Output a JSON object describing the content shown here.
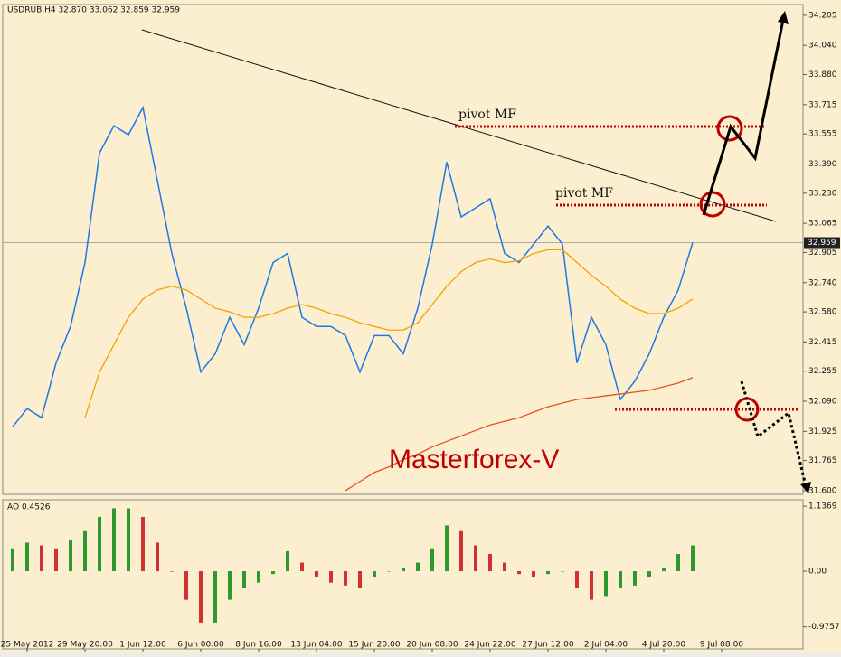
{
  "chart_data": [
    {
      "type": "line",
      "title": "USDRUB,H4  32.870 33.062 32.859 32.959",
      "ylim": [
        31.58,
        34.264
      ],
      "yticks": [
        34.205,
        {
          "value": 34.04,
          "label": "34.040"
        },
        {
          "value": 33.88,
          "label": "33.880"
        },
        33.715,
        33.555,
        {
          "value": 33.39,
          "label": "33.390"
        },
        {
          "value": 33.23,
          "label": "33.230"
        },
        33.065,
        32.905,
        {
          "value": 32.74,
          "label": "32.740"
        },
        {
          "value": 32.58,
          "label": "32.580"
        },
        32.415,
        32.255,
        {
          "value": 32.09,
          "label": "32.090"
        },
        31.925,
        31.765,
        {
          "value": 31.6,
          "label": "31.600"
        }
      ],
      "last_price": 32.959,
      "annotations": [
        "pivot MF",
        "pivot MF",
        "Masterforex-V"
      ],
      "series": [
        {
          "color": "#1e78e6",
          "values": [
            31.95,
            32.05,
            32.0,
            32.3,
            32.5,
            32.85,
            33.45,
            33.6,
            33.55,
            33.7,
            33.3,
            32.9,
            32.6,
            32.25,
            32.35,
            32.55,
            32.4,
            32.6,
            32.85,
            32.9,
            32.55,
            32.5,
            32.5,
            32.45,
            32.25,
            32.45,
            32.45,
            32.35,
            32.6,
            32.95,
            33.4,
            33.1,
            33.15,
            33.2,
            32.9,
            32.85,
            32.95,
            33.05,
            32.95,
            32.3,
            32.55,
            32.4,
            32.1,
            32.2,
            32.35,
            32.55,
            32.7,
            32.96,
            null,
            null
          ]
        },
        {
          "color": "#f5a000",
          "values": [
            null,
            null,
            null,
            null,
            null,
            32.0,
            32.25,
            32.4,
            32.55,
            32.65,
            32.7,
            32.72,
            32.7,
            32.65,
            32.6,
            32.58,
            32.55,
            32.55,
            32.57,
            32.6,
            32.62,
            32.6,
            32.57,
            32.55,
            32.52,
            32.5,
            32.48,
            32.48,
            32.52,
            32.62,
            32.72,
            32.8,
            32.85,
            32.87,
            32.85,
            32.86,
            32.9,
            32.92,
            32.92,
            32.85,
            32.78,
            32.72,
            32.65,
            32.6,
            32.57,
            32.57,
            32.6,
            32.65,
            null,
            null
          ]
        },
        {
          "color": "#e8501e",
          "values": [
            null,
            null,
            null,
            null,
            null,
            null,
            null,
            null,
            null,
            null,
            null,
            null,
            null,
            null,
            null,
            null,
            null,
            null,
            null,
            null,
            null,
            null,
            null,
            31.6,
            31.65,
            31.7,
            31.73,
            31.77,
            31.8,
            31.84,
            31.87,
            31.9,
            31.93,
            31.96,
            31.98,
            32.0,
            32.03,
            32.06,
            32.08,
            32.1,
            32.11,
            32.12,
            32.13,
            32.14,
            32.15,
            32.17,
            32.19,
            32.22,
            null,
            null
          ]
        }
      ]
    },
    {
      "type": "bar",
      "title": "AO 0.4526",
      "ylim": [
        -1.36,
        1.25
      ],
      "yticks": [
        1.1369,
        {
          "value": 0,
          "label": "0.00"
        },
        -0.9757
      ],
      "colors": {
        "up": "#2e9a2e",
        "down": "#d03030"
      },
      "categories": [
        null,
        "25 May 2012",
        null,
        null,
        null,
        "29 May 20:00",
        null,
        null,
        null,
        "1 Jun 12:00",
        null,
        null,
        null,
        "6 Jun 00:00",
        null,
        null,
        null,
        "8 Jun 16:00",
        null,
        null,
        null,
        "13 Jun 04:00",
        null,
        null,
        null,
        "15 Jun 20:00",
        null,
        null,
        null,
        "20 Jun 08:00",
        null,
        null,
        null,
        "24 Jun 22:00",
        null,
        null,
        null,
        "27 Jun 12:00",
        null,
        null,
        null,
        "2 Jul 04:00",
        null,
        null,
        null,
        "4 Jul 20:00",
        null,
        null,
        null,
        "9 Jul 08:00"
      ],
      "values": [
        0.4,
        0.5,
        0.45,
        0.4,
        0.55,
        0.7,
        0.95,
        1.1,
        1.1,
        0.95,
        0.5,
        0.0,
        -0.5,
        -0.9,
        -0.9,
        -0.5,
        -0.3,
        -0.2,
        -0.05,
        0.35,
        0.15,
        -0.1,
        -0.2,
        -0.25,
        -0.3,
        -0.1,
        0.0,
        0.05,
        0.15,
        0.4,
        0.8,
        0.7,
        0.45,
        0.3,
        0.15,
        -0.05,
        -0.1,
        -0.05,
        0.0,
        -0.3,
        -0.5,
        -0.45,
        -0.3,
        -0.25,
        -0.1,
        0.05,
        0.3,
        0.45,
        null,
        null
      ]
    }
  ]
}
